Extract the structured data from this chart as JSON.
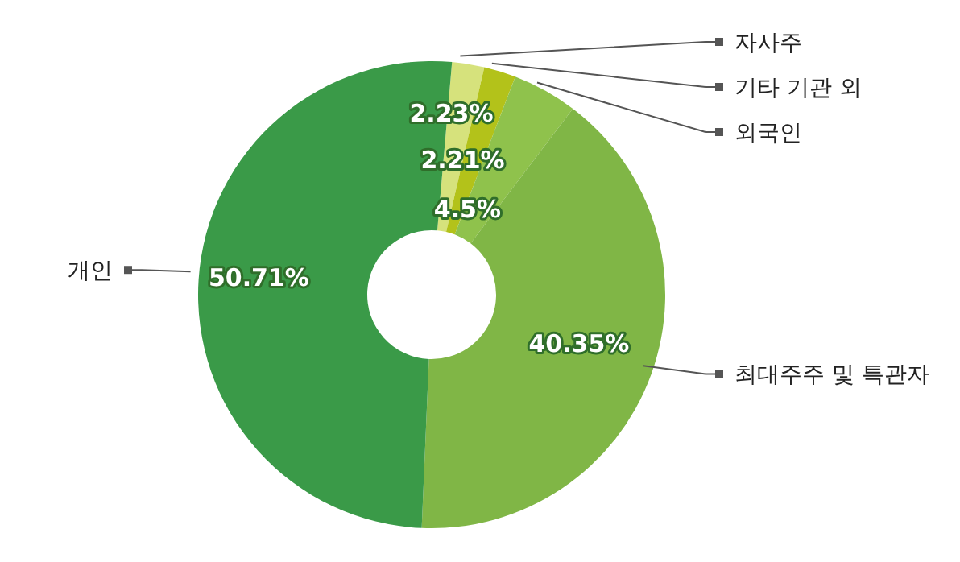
{
  "chart_data": {
    "type": "donut",
    "categories": [
      "자사주",
      "기타 기관 외",
      "외국인",
      "최대주주 및 특관자",
      "개인"
    ],
    "values": [
      2.23,
      2.21,
      4.5,
      40.35,
      50.71
    ],
    "colors": [
      "#d6e27c",
      "#b3c21a",
      "#8fc24c",
      "#80b646",
      "#3a9a48"
    ],
    "value_labels": [
      "2.23%",
      "2.21%",
      "4.5%",
      "40.35%",
      "50.71%"
    ],
    "legend": false
  }
}
